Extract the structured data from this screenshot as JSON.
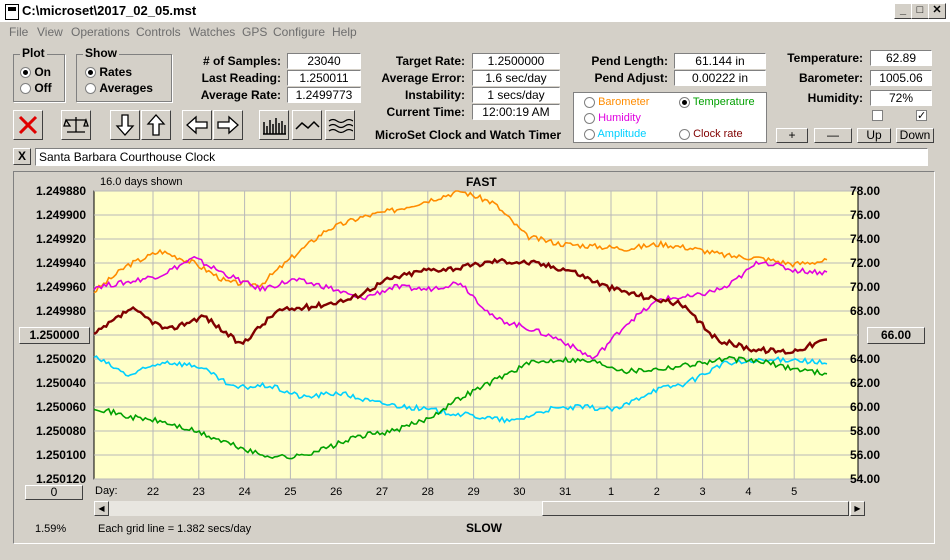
{
  "window": {
    "title": "C:\\microset\\2017_02_05.mst",
    "min": "_",
    "max": "□",
    "close": "✕"
  },
  "menu": [
    "File",
    "View",
    "Operations",
    "Controls",
    "Watches",
    "GPS",
    "Configure",
    "Help"
  ],
  "plot_group": {
    "title": "Plot",
    "on": "On",
    "off": "Off",
    "selected": "On"
  },
  "show_group": {
    "title": "Show",
    "rates": "Rates",
    "averages": "Averages",
    "selected": "Rates"
  },
  "stats": {
    "samples_label": "# of Samples:",
    "samples": "23040",
    "last_reading_label": "Last Reading:",
    "last_reading": "1.250011",
    "avg_rate_label": "Average Rate:",
    "avg_rate": "1.2499773",
    "target_rate_label": "Target Rate:",
    "target_rate": "1.2500000",
    "avg_error_label": "Average Error:",
    "avg_error": "1.6 sec/day",
    "instability_label": "Instability:",
    "instability": "1 secs/day",
    "current_time_label": "Current Time:",
    "current_time": "12:00:19 AM",
    "pend_length_label": "Pend Length:",
    "pend_length": "61.144 in",
    "pend_adjust_label": "Pend Adjust:",
    "pend_adjust": "0.00222 in",
    "temperature_label": "Temperature:",
    "temperature": "62.89",
    "barometer_label": "Barometer:",
    "barometer": "1005.06",
    "humidity_label": "Humidity:",
    "humidity": "72%"
  },
  "app_title": "MicroSet Clock and Watch Timer",
  "sensor_options": [
    {
      "label": "Barometer",
      "color": "#ff8c00",
      "selected": false
    },
    {
      "label": "Temperature",
      "color": "#00a000",
      "selected": true
    },
    {
      "label": "Humidity",
      "color": "#e000e0",
      "selected": false
    },
    {
      "label": "Amplitude",
      "color": "#00d0ff",
      "selected": false
    },
    {
      "label": "Clock rate",
      "color": "#800000",
      "selected": false
    }
  ],
  "small_buttons": {
    "plus": "+",
    "minus": "—",
    "up": "Up",
    "down": "Down"
  },
  "checkboxes": {
    "left": "",
    "right": "✓"
  },
  "clock_name": "Santa Barbara Courthouse Clock",
  "clear_button": "X",
  "chart": {
    "days_shown": "16.0 days shown",
    "top_label": "FAST",
    "bottom_label": "SLOW",
    "grid_note": "Each grid line = 1.382 secs/day",
    "percent": "1.59%",
    "day_label": "Day:",
    "left_button": "1.250000",
    "right_button": "66.00",
    "zero_button": "0"
  },
  "chart_data": {
    "type": "line",
    "left_axis_ticks": [
      "1.249880",
      "1.249900",
      "1.249920",
      "1.249940",
      "1.249960",
      "1.249980",
      "1.250000",
      "1.250020",
      "1.250040",
      "1.250060",
      "1.250080",
      "1.250100",
      "1.250120"
    ],
    "right_axis_ticks": [
      "78.00",
      "76.00",
      "74.00",
      "72.00",
      "70.00",
      "68.00",
      "66.00",
      "64.00",
      "62.00",
      "60.00",
      "58.00",
      "56.00",
      "54.00"
    ],
    "right_ylim": [
      54,
      78
    ],
    "x_ticks": [
      "22",
      "23",
      "24",
      "25",
      "26",
      "27",
      "28",
      "29",
      "30",
      "31",
      "1",
      "2",
      "3",
      "4",
      "5"
    ],
    "series": [
      {
        "color": "#ff8c00",
        "values": [
          69.6,
          71.8,
          73.0,
          72.0,
          70.4,
          70.2,
          72.6,
          74.8,
          75.8,
          76.4,
          77.2,
          78.0,
          77.0,
          74.2,
          73.6,
          73.4,
          73.2,
          73.6,
          73.2,
          72.6,
          72.4,
          71.9,
          72.2
        ]
      },
      {
        "color": "#e000e0",
        "values": [
          70.0,
          70.4,
          71.0,
          72.4,
          71.0,
          69.8,
          70.6,
          70.0,
          69.0,
          70.0,
          69.8,
          70.4,
          67.4,
          66.6,
          65.6,
          64.0,
          67.0,
          69.0,
          69.2,
          70.0,
          72.2,
          71.4,
          71.2
        ]
      },
      {
        "color": "#800000",
        "values": [
          66.0,
          68.2,
          66.4,
          67.6,
          65.2,
          68.0,
          68.4,
          69.0,
          70.6,
          71.4,
          71.6,
          72.2,
          72.0,
          71.4,
          70.0,
          69.2,
          68.6,
          65.6,
          64.8,
          64.6,
          65.6
        ]
      },
      {
        "color": "#00d0ff",
        "values": [
          64.2,
          62.6,
          63.8,
          63.4,
          61.6,
          61.8,
          60.8,
          61.2,
          60.4,
          60.0,
          59.6,
          59.2,
          58.8,
          59.8,
          60.0,
          59.8,
          61.4,
          62.0,
          63.6,
          63.8,
          64.0,
          63.6
        ]
      },
      {
        "color": "#00a000",
        "values": [
          60.0,
          59.2,
          58.8,
          58.0,
          57.0,
          56.0,
          55.8,
          56.6,
          57.6,
          58.0,
          59.0,
          60.8,
          62.2,
          63.6,
          64.0,
          63.8,
          63.0,
          63.2,
          63.6,
          64.0,
          63.8,
          63.2,
          62.8
        ]
      }
    ]
  }
}
